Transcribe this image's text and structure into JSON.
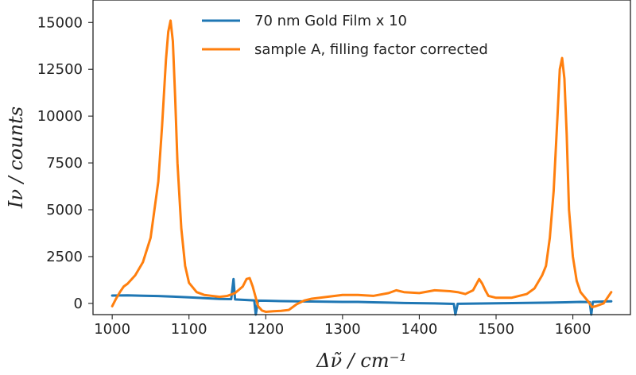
{
  "chart_data": {
    "type": "line",
    "title": "",
    "xlabel": "Δν̃ / cm⁻¹",
    "ylabel": "Iν / counts",
    "xlim": [
      975,
      1675
    ],
    "ylim": [
      -600,
      16200
    ],
    "grid": false,
    "legend_position": "top-center",
    "x_ticks": [
      1000,
      1100,
      1200,
      1300,
      1400,
      1500,
      1600
    ],
    "y_ticks": [
      0,
      2500,
      5000,
      7500,
      10000,
      12500,
      15000
    ],
    "x_tick_labels": [
      "1000",
      "1100",
      "1200",
      "1300",
      "1400",
      "1500",
      "1600"
    ],
    "y_tick_labels": [
      "0",
      "2500",
      "5000",
      "7500",
      "10000",
      "12500",
      "15000"
    ],
    "series": [
      {
        "name": "70 nm Gold Film x 10",
        "color": "#1f77b4",
        "x": [
          1000,
          1020,
          1040,
          1060,
          1080,
          1100,
          1120,
          1140,
          1155,
          1158,
          1160,
          1180,
          1185,
          1187,
          1190,
          1200,
          1220,
          1240,
          1260,
          1280,
          1300,
          1320,
          1340,
          1360,
          1380,
          1400,
          1420,
          1440,
          1445,
          1447,
          1450,
          1470,
          1490,
          1510,
          1530,
          1550,
          1570,
          1590,
          1610,
          1622,
          1624,
          1626,
          1640,
          1650
        ],
        "values": [
          420,
          430,
          410,
          390,
          360,
          320,
          280,
          240,
          230,
          1300,
          210,
          170,
          160,
          -600,
          150,
          140,
          120,
          110,
          100,
          90,
          80,
          80,
          60,
          40,
          20,
          10,
          0,
          -20,
          -30,
          -600,
          -20,
          -10,
          0,
          10,
          20,
          30,
          40,
          60,
          80,
          70,
          -600,
          80,
          100,
          110
        ]
      },
      {
        "name": "sample A, filling factor corrected",
        "color": "#ff7f0e",
        "x": [
          1000,
          1005,
          1010,
          1015,
          1020,
          1030,
          1040,
          1050,
          1060,
          1065,
          1070,
          1073,
          1076,
          1079,
          1082,
          1085,
          1090,
          1095,
          1100,
          1110,
          1120,
          1130,
          1140,
          1150,
          1160,
          1170,
          1175,
          1179,
          1183,
          1187,
          1190,
          1195,
          1200,
          1210,
          1220,
          1230,
          1240,
          1250,
          1260,
          1280,
          1300,
          1320,
          1340,
          1360,
          1370,
          1380,
          1400,
          1420,
          1440,
          1450,
          1460,
          1470,
          1478,
          1482,
          1486,
          1490,
          1500,
          1520,
          1540,
          1550,
          1560,
          1565,
          1570,
          1575,
          1580,
          1583,
          1586,
          1589,
          1592,
          1595,
          1600,
          1605,
          1610,
          1620,
          1625,
          1630,
          1640,
          1645,
          1650
        ],
        "values": [
          -150,
          250,
          600,
          900,
          1050,
          1500,
          2200,
          3500,
          6500,
          9500,
          13000,
          14500,
          15100,
          14000,
          11000,
          7500,
          4000,
          2000,
          1100,
          600,
          450,
          400,
          350,
          400,
          550,
          900,
          1300,
          1350,
          900,
          300,
          -150,
          -380,
          -450,
          -420,
          -400,
          -350,
          -50,
          150,
          250,
          350,
          450,
          450,
          400,
          550,
          700,
          600,
          550,
          700,
          650,
          600,
          500,
          700,
          1300,
          1050,
          700,
          400,
          300,
          300,
          500,
          800,
          1500,
          2000,
          3500,
          6000,
          10000,
          12500,
          13100,
          12000,
          9000,
          5000,
          2500,
          1200,
          600,
          100,
          -200,
          -150,
          0,
          300,
          600
        ]
      }
    ]
  }
}
